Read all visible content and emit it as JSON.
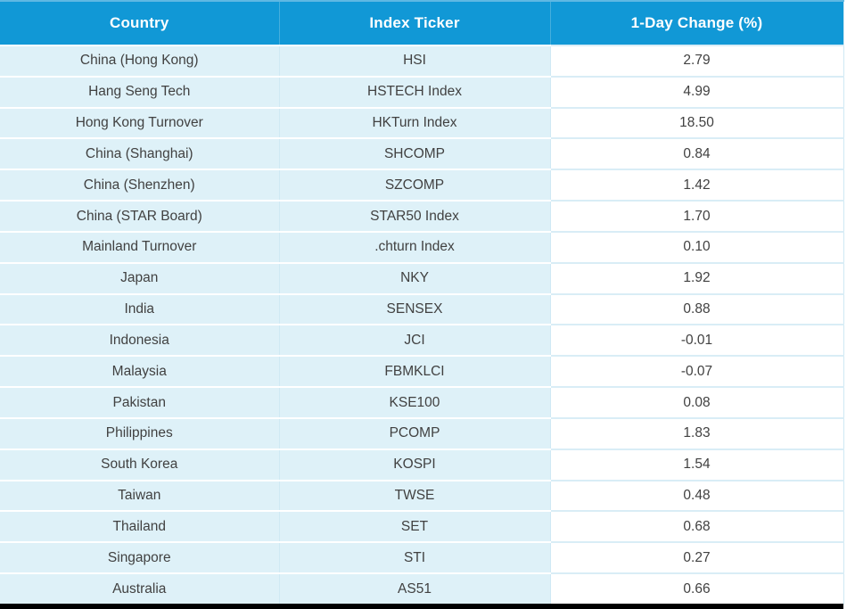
{
  "chart_data": {
    "type": "table",
    "title": "",
    "columns": [
      "Country",
      "Index Ticker",
      "1-Day Change (%)"
    ],
    "rows": [
      [
        "China (Hong Kong)",
        "HSI",
        "2.79"
      ],
      [
        "Hang Seng Tech",
        "HSTECH Index",
        "4.99"
      ],
      [
        "Hong Kong Turnover",
        "HKTurn Index",
        "18.50"
      ],
      [
        "China (Shanghai)",
        "SHCOMP",
        "0.84"
      ],
      [
        "China (Shenzhen)",
        "SZCOMP",
        "1.42"
      ],
      [
        "China (STAR Board)",
        "STAR50 Index",
        "1.70"
      ],
      [
        "Mainland Turnover",
        ".chturn Index",
        "0.10"
      ],
      [
        "Japan",
        "NKY",
        "1.92"
      ],
      [
        "India",
        "SENSEX",
        "0.88"
      ],
      [
        "Indonesia",
        "JCI",
        "-0.01"
      ],
      [
        "Malaysia",
        "FBMKLCI",
        "-0.07"
      ],
      [
        "Pakistan",
        "KSE100",
        "0.08"
      ],
      [
        "Philippines",
        "PCOMP",
        "1.83"
      ],
      [
        "South Korea",
        "KOSPI",
        "1.54"
      ],
      [
        "Taiwan",
        "TWSE",
        "0.48"
      ],
      [
        "Thailand",
        "SET",
        "0.68"
      ],
      [
        "Singapore",
        "STI",
        "0.27"
      ],
      [
        "Australia",
        "AS51",
        "0.66"
      ]
    ],
    "legend": null,
    "grid": "row-separators"
  },
  "colors": {
    "header_bg": "#1198d6",
    "header_top_line": "#5fb8e3",
    "header_text": "#ffffff",
    "header_divider": "#45aedd",
    "row_bg": "#def1f8",
    "value_bg": "#ffffff",
    "row_divider_white": "#ffffff",
    "row_divider_blue": "#d9edf6",
    "col_divider": "#cfe9f4",
    "body_text": "#414141",
    "bottom_bar": "#000000"
  }
}
